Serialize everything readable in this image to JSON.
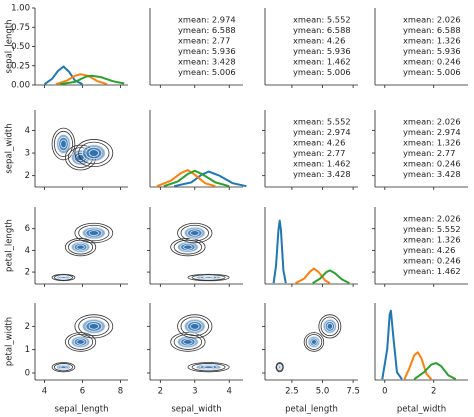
{
  "chart_data": {
    "type": "pairgrid",
    "variables": [
      {
        "label": "sepal_length",
        "xlim": [
          3.5,
          8.4
        ],
        "xticks": [
          4,
          6,
          8
        ]
      },
      {
        "label": "sepal_width",
        "xlim": [
          1.7,
          4.4
        ],
        "xticks": [
          2,
          3,
          4
        ],
        "ylim": [
          1.5,
          4.9
        ],
        "yticks": [
          2,
          3,
          4
        ]
      },
      {
        "label": "petal_length",
        "xlim": [
          0.3,
          7.9
        ],
        "xticks": [
          2.5,
          {
            "value": 5,
            "label": "5.0"
          },
          7.5
        ],
        "ylim": [
          0.9,
          8.0
        ],
        "yticks": [
          2,
          4,
          6
        ]
      },
      {
        "label": "petal_width",
        "xlim": [
          -0.4,
          3.4
        ],
        "xticks": [
          0,
          2
        ],
        "ylim": [
          -0.3,
          3.0
        ],
        "yticks": [
          0,
          1,
          2
        ]
      }
    ],
    "diagonal": [
      {
        "ylim": [
          0,
          1
        ],
        "yticks": [
          {
            "value": 0,
            "label": "0.00"
          },
          {
            "value": 0.25,
            "label": "0.25"
          },
          {
            "value": 0.5,
            "label": "0.50"
          },
          {
            "value": 0.75,
            "label": "0.75"
          },
          {
            "value": 1,
            "label": "1.00"
          }
        ],
        "series": [
          {
            "color": "#1f77b4",
            "x": [
              4.0,
              4.4,
              4.7,
              5.0,
              5.3,
              5.6,
              6.0
            ],
            "values": [
              0.01,
              0.08,
              0.18,
              0.24,
              0.17,
              0.06,
              0.01
            ]
          },
          {
            "color": "#ff7f0e",
            "x": [
              4.6,
              5.2,
              5.6,
              5.9,
              6.3,
              6.8,
              7.3
            ],
            "values": [
              0.01,
              0.06,
              0.12,
              0.14,
              0.12,
              0.05,
              0.01
            ]
          },
          {
            "color": "#2ca02c",
            "x": [
              4.8,
              5.6,
              6.2,
              6.5,
              7.0,
              7.6,
              8.2
            ],
            "values": [
              0.01,
              0.04,
              0.11,
              0.12,
              0.1,
              0.05,
              0.02
            ]
          }
        ]
      },
      {
        "ylim": [
          0,
          1
        ],
        "series": [
          {
            "color": "#1f77b4",
            "x": [
              2.4,
              2.9,
              3.2,
              3.4,
              3.7,
              4.1,
              4.5
            ],
            "values": [
              0.01,
              0.06,
              0.16,
              0.2,
              0.15,
              0.05,
              0.01
            ]
          },
          {
            "color": "#ff7f0e",
            "x": [
              1.9,
              2.3,
              2.6,
              2.8,
              3.0,
              3.3,
              3.6
            ],
            "values": [
              0.01,
              0.08,
              0.18,
              0.22,
              0.16,
              0.05,
              0.01
            ]
          },
          {
            "color": "#2ca02c",
            "x": [
              2.1,
              2.5,
              2.8,
              3.0,
              3.2,
              3.6,
              4.0
            ],
            "values": [
              0.01,
              0.07,
              0.17,
              0.21,
              0.17,
              0.06,
              0.01
            ]
          }
        ]
      },
      {
        "ylim": [
          0,
          0.85
        ],
        "series": [
          {
            "color": "#1f77b4",
            "x": [
              1.0,
              1.2,
              1.4,
              1.5,
              1.6,
              1.8,
              2.0
            ],
            "values": [
              0.01,
              0.2,
              0.6,
              0.7,
              0.6,
              0.15,
              0.01
            ]
          },
          {
            "color": "#ff7f0e",
            "x": [
              2.8,
              3.5,
              4.0,
              4.3,
              4.7,
              5.2,
              5.6
            ],
            "values": [
              0.01,
              0.06,
              0.14,
              0.17,
              0.13,
              0.04,
              0.01
            ]
          },
          {
            "color": "#2ca02c",
            "x": [
              4.2,
              4.8,
              5.3,
              5.6,
              6.0,
              6.6,
              7.2
            ],
            "values": [
              0.01,
              0.06,
              0.13,
              0.15,
              0.12,
              0.05,
              0.01
            ]
          }
        ]
      },
      {
        "ylim": [
          0,
          1
        ],
        "series": [
          {
            "color": "#1f77b4",
            "x": [
              -0.1,
              0.1,
              0.2,
              0.25,
              0.35,
              0.5,
              0.7
            ],
            "values": [
              0.01,
              0.4,
              0.85,
              0.9,
              0.55,
              0.1,
              0.01
            ]
          },
          {
            "color": "#ff7f0e",
            "x": [
              0.8,
              1.0,
              1.2,
              1.35,
              1.5,
              1.7,
              1.9
            ],
            "values": [
              0.01,
              0.15,
              0.32,
              0.36,
              0.28,
              0.08,
              0.01
            ]
          },
          {
            "color": "#2ca02c",
            "x": [
              1.2,
              1.6,
              1.9,
              2.1,
              2.3,
              2.6,
              2.9
            ],
            "values": [
              0.01,
              0.1,
              0.2,
              0.22,
              0.18,
              0.06,
              0.01
            ]
          }
        ]
      }
    ],
    "contour_fill": "#2f6fad",
    "contour_line": "#333333",
    "lower": [
      [
        {
          "cx": 5.0,
          "cy": 3.4,
          "rx": 0.6,
          "ry": 0.7
        },
        {
          "cx": 5.9,
          "cy": 2.8,
          "rx": 0.8,
          "ry": 0.55
        },
        {
          "cx": 6.6,
          "cy": 3.0,
          "rx": 1.0,
          "ry": 0.6
        }
      ],
      [
        {
          "cx": 5.0,
          "cy": 1.5,
          "rx": 0.6,
          "ry": 0.3
        },
        {
          "cx": 5.9,
          "cy": 4.3,
          "rx": 0.8,
          "ry": 0.8
        },
        {
          "cx": 6.6,
          "cy": 5.6,
          "rx": 1.0,
          "ry": 0.9
        }
      ],
      [
        {
          "cx": 3.4,
          "cy": 1.5,
          "rx": 0.6,
          "ry": 0.3
        },
        {
          "cx": 2.8,
          "cy": 4.3,
          "rx": 0.5,
          "ry": 0.8
        },
        {
          "cx": 3.0,
          "cy": 5.6,
          "rx": 0.5,
          "ry": 0.9
        }
      ],
      [
        {
          "cx": 5.0,
          "cy": 0.25,
          "rx": 0.6,
          "ry": 0.2
        },
        {
          "cx": 5.9,
          "cy": 1.33,
          "rx": 0.8,
          "ry": 0.4
        },
        {
          "cx": 6.6,
          "cy": 2.0,
          "rx": 1.0,
          "ry": 0.5
        }
      ],
      [
        {
          "cx": 3.4,
          "cy": 0.25,
          "rx": 0.6,
          "ry": 0.2
        },
        {
          "cx": 2.8,
          "cy": 1.33,
          "rx": 0.5,
          "ry": 0.4
        },
        {
          "cx": 3.0,
          "cy": 2.0,
          "rx": 0.5,
          "ry": 0.5
        }
      ],
      [
        {
          "cx": 1.5,
          "cy": 0.25,
          "rx": 0.3,
          "ry": 0.2
        },
        {
          "cx": 4.3,
          "cy": 1.33,
          "rx": 0.8,
          "ry": 0.4
        },
        {
          "cx": 5.6,
          "cy": 2.0,
          "rx": 0.9,
          "ry": 0.5
        }
      ]
    ],
    "upper": [
      [
        {
          "text": "xmean: 2.974",
          "color": "#2ca02c"
        },
        {
          "text": "ymean: 6.588",
          "color": "#2ca02c"
        },
        {
          "text": "xmean: 2.77",
          "color": "#ff7f0e"
        },
        {
          "text": "ymean: 5.936",
          "color": "#ff7f0e"
        },
        {
          "text": "xmean: 3.428",
          "color": "#1f77b4"
        },
        {
          "text": "ymean: 5.006",
          "color": "#1f77b4"
        }
      ],
      [
        {
          "text": "xmean: 5.552",
          "color": "#2ca02c"
        },
        {
          "text": "ymean: 6.588",
          "color": "#2ca02c"
        },
        {
          "text": "xmean: 4.26",
          "color": "#ff7f0e"
        },
        {
          "text": "ymean: 5.936",
          "color": "#ff7f0e"
        },
        {
          "text": "xmean: 1.462",
          "color": "#1f77b4"
        },
        {
          "text": "ymean: 5.006",
          "color": "#1f77b4"
        }
      ],
      [
        {
          "text": "xmean: 2.026",
          "color": "#2ca02c"
        },
        {
          "text": "ymean: 6.588",
          "color": "#2ca02c"
        },
        {
          "text": "xmean: 1.326",
          "color": "#ff7f0e"
        },
        {
          "text": "ymean: 5.936",
          "color": "#ff7f0e"
        },
        {
          "text": "xmean: 0.246",
          "color": "#1f77b4"
        },
        {
          "text": "ymean: 5.006",
          "color": "#1f77b4"
        }
      ],
      [
        {
          "text": "xmean: 5.552",
          "color": "#2ca02c"
        },
        {
          "text": "ymean: 2.974",
          "color": "#2ca02c"
        },
        {
          "text": "xmean: 4.26",
          "color": "#ff7f0e"
        },
        {
          "text": "ymean: 2.77",
          "color": "#ff7f0e"
        },
        {
          "text": "xmean: 1.462",
          "color": "#1f77b4"
        },
        {
          "text": "ymean: 3.428",
          "color": "#1f77b4"
        }
      ],
      [
        {
          "text": "xmean: 2.026",
          "color": "#2ca02c"
        },
        {
          "text": "ymean: 2.974",
          "color": "#2ca02c"
        },
        {
          "text": "xmean: 1.326",
          "color": "#ff7f0e"
        },
        {
          "text": "ymean: 2.77",
          "color": "#ff7f0e"
        },
        {
          "text": "xmean: 0.246",
          "color": "#1f77b4"
        },
        {
          "text": "ymean: 3.428",
          "color": "#1f77b4"
        }
      ],
      [
        {
          "text": "xmean: 2.026",
          "color": "#2ca02c"
        },
        {
          "text": "ymean: 5.552",
          "color": "#2ca02c"
        },
        {
          "text": "xmean: 1.326",
          "color": "#ff7f0e"
        },
        {
          "text": "ymean: 4.26",
          "color": "#ff7f0e"
        },
        {
          "text": "xmean: 0.246",
          "color": "#1f77b4"
        },
        {
          "text": "ymean: 1.462",
          "color": "#1f77b4"
        }
      ]
    ]
  }
}
